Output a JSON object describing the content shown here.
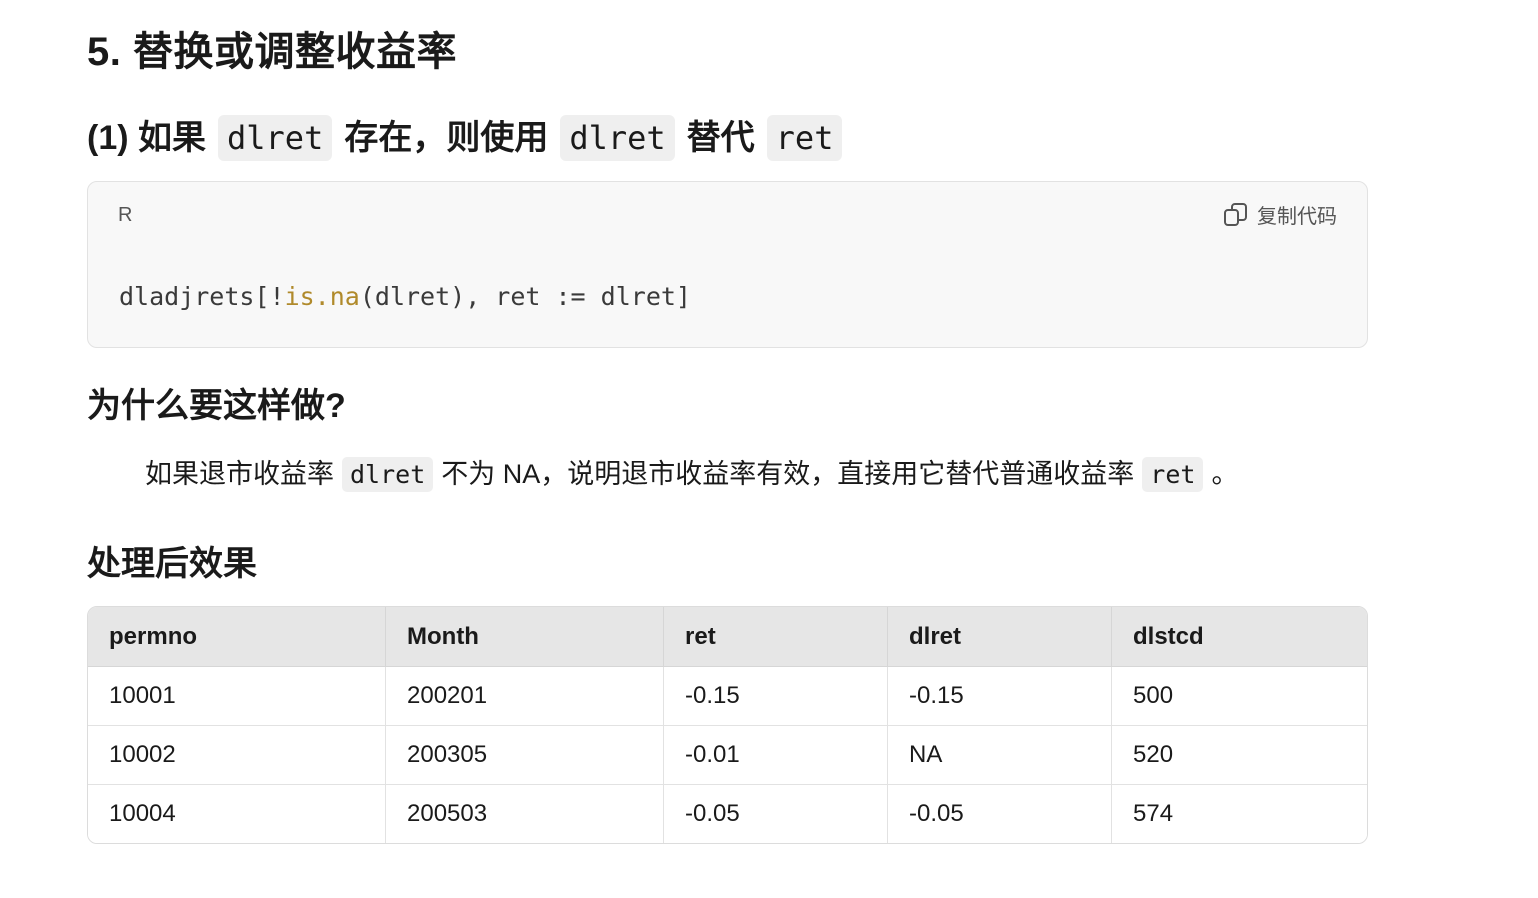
{
  "section": {
    "title": "5. 替换或调整收益率"
  },
  "step1": {
    "prefix": "(1) 如果",
    "code_a": "dlret",
    "middle": "存在，则使用",
    "code_b": "dlret",
    "suffix": "替代",
    "code_c": "ret"
  },
  "code_block": {
    "language": "R",
    "copy_label": "复制代码",
    "code_before": "dladjrets[!",
    "code_fn": "is.na",
    "code_after": "(dlret), ret := dlret]"
  },
  "why": {
    "title": "为什么要这样做?",
    "text_1": "如果退市收益率",
    "code_1": "dlret",
    "text_2": "不为 NA，说明退市收益率有效，直接用它替代普通收益率",
    "code_2": "ret",
    "text_3": "。"
  },
  "result": {
    "title": "处理后效果",
    "columns": [
      "permno",
      "Month",
      "ret",
      "dlret",
      "dlstcd"
    ],
    "rows": [
      [
        "10001",
        "200201",
        "-0.15",
        "-0.15",
        "500"
      ],
      [
        "10002",
        "200305",
        "-0.01",
        "NA",
        "520"
      ],
      [
        "10004",
        "200503",
        "-0.05",
        "-0.05",
        "574"
      ]
    ]
  }
}
